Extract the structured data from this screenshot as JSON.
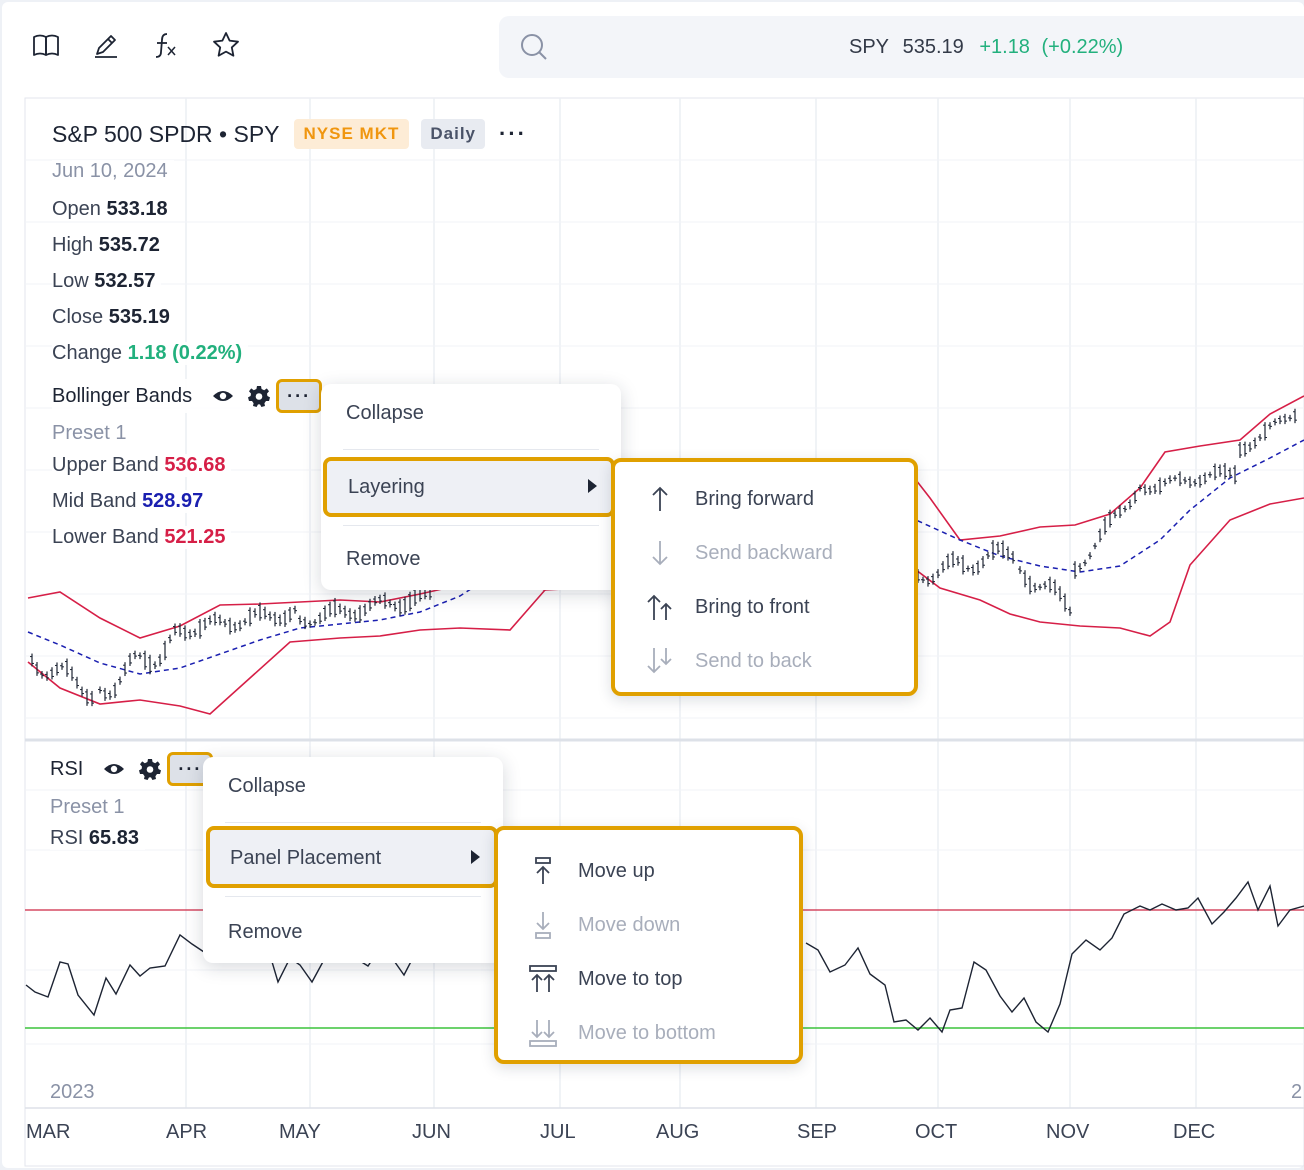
{
  "toolbar": {
    "icons": [
      "book-icon",
      "pencil-icon",
      "function-icon",
      "star-icon"
    ],
    "quote": {
      "symbol": "SPY",
      "price": "535.19",
      "change": "+1.18",
      "change_pct": "(+0.22%)"
    }
  },
  "header": {
    "title": "S&P 500 SPDR • SPY",
    "exchange": "NYSE MKT",
    "interval": "Daily",
    "more": "···"
  },
  "ohlc": {
    "date": "Jun 10, 2024",
    "open_label": "Open",
    "open": "533.18",
    "high_label": "High",
    "high": "535.72",
    "low_label": "Low",
    "low": "532.57",
    "close_label": "Close",
    "close": "535.19",
    "change_label": "Change",
    "change": "1.18 (0.22%)"
  },
  "bollinger": {
    "name": "Bollinger Bands",
    "preset": "Preset 1",
    "upper_label": "Upper Band",
    "upper": "536.68",
    "mid_label": "Mid Band",
    "mid": "528.97",
    "lower_label": "Lower Band",
    "lower": "521.25",
    "menu": {
      "collapse": "Collapse",
      "layering": "Layering",
      "remove": "Remove"
    },
    "layering_menu": {
      "bring_forward": "Bring forward",
      "send_backward": "Send backward",
      "bring_to_front": "Bring to front",
      "send_to_back": "Send to back"
    }
  },
  "rsi": {
    "name": "RSI",
    "preset": "Preset 1",
    "value_label": "RSI",
    "value": "65.83",
    "menu": {
      "collapse": "Collapse",
      "panel_placement": "Panel Placement",
      "remove": "Remove"
    },
    "placement_menu": {
      "move_up": "Move up",
      "move_down": "Move down",
      "move_to_top": "Move to top",
      "move_to_bottom": "Move to bottom"
    }
  },
  "axis": {
    "year": "2023",
    "year_next": "2",
    "months": [
      "MAR",
      "APR",
      "MAY",
      "JUN",
      "JUL",
      "AUG",
      "SEP",
      "OCT",
      "NOV",
      "DEC"
    ]
  },
  "colors": {
    "highlight": "#e0a000",
    "band": "#d61f47",
    "mid_band": "#1a1fb0",
    "up": "#22b07d",
    "rsi_upper": "#d64b63",
    "rsi_lower": "#3cc43c"
  }
}
